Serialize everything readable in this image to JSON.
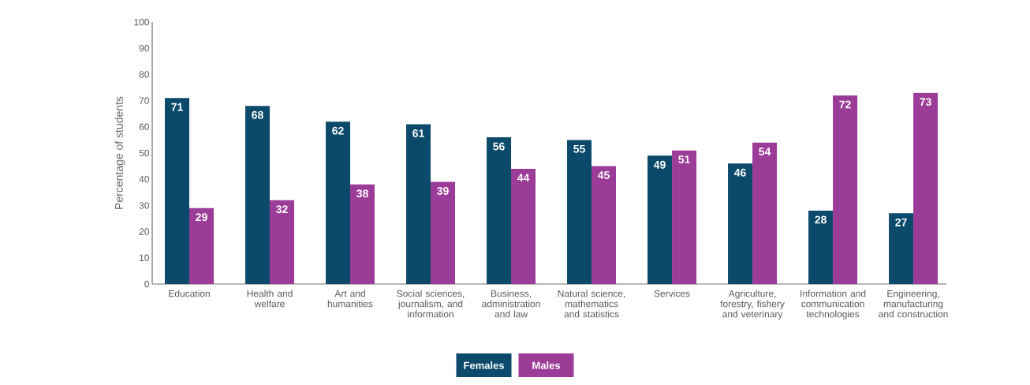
{
  "chart_data": {
    "type": "bar",
    "ylabel": "Percentage of students",
    "categories": [
      "Education",
      "Health and welfare",
      "Art and humanities",
      "Social sciences, journalism, and information",
      "Business, administration and law",
      "Natural science, mathematics and statistics",
      "Services",
      "Agriculture, forestry, fishery and veterinary",
      "Information and communication technologies",
      "Engineering, manufacturing and construction"
    ],
    "series": [
      {
        "name": "Females",
        "color": "#0b4a6a",
        "values": [
          71,
          68,
          62,
          61,
          56,
          55,
          49,
          46,
          28,
          27
        ]
      },
      {
        "name": "Males",
        "color": "#9b3d98",
        "values": [
          29,
          32,
          38,
          39,
          44,
          45,
          51,
          54,
          72,
          73
        ]
      }
    ],
    "ylim": [
      0,
      100
    ],
    "yticks": [
      0,
      10,
      20,
      30,
      40,
      50,
      60,
      70,
      80,
      90,
      100
    ],
    "data_labels": true,
    "legend": "bottom",
    "grid": false
  }
}
